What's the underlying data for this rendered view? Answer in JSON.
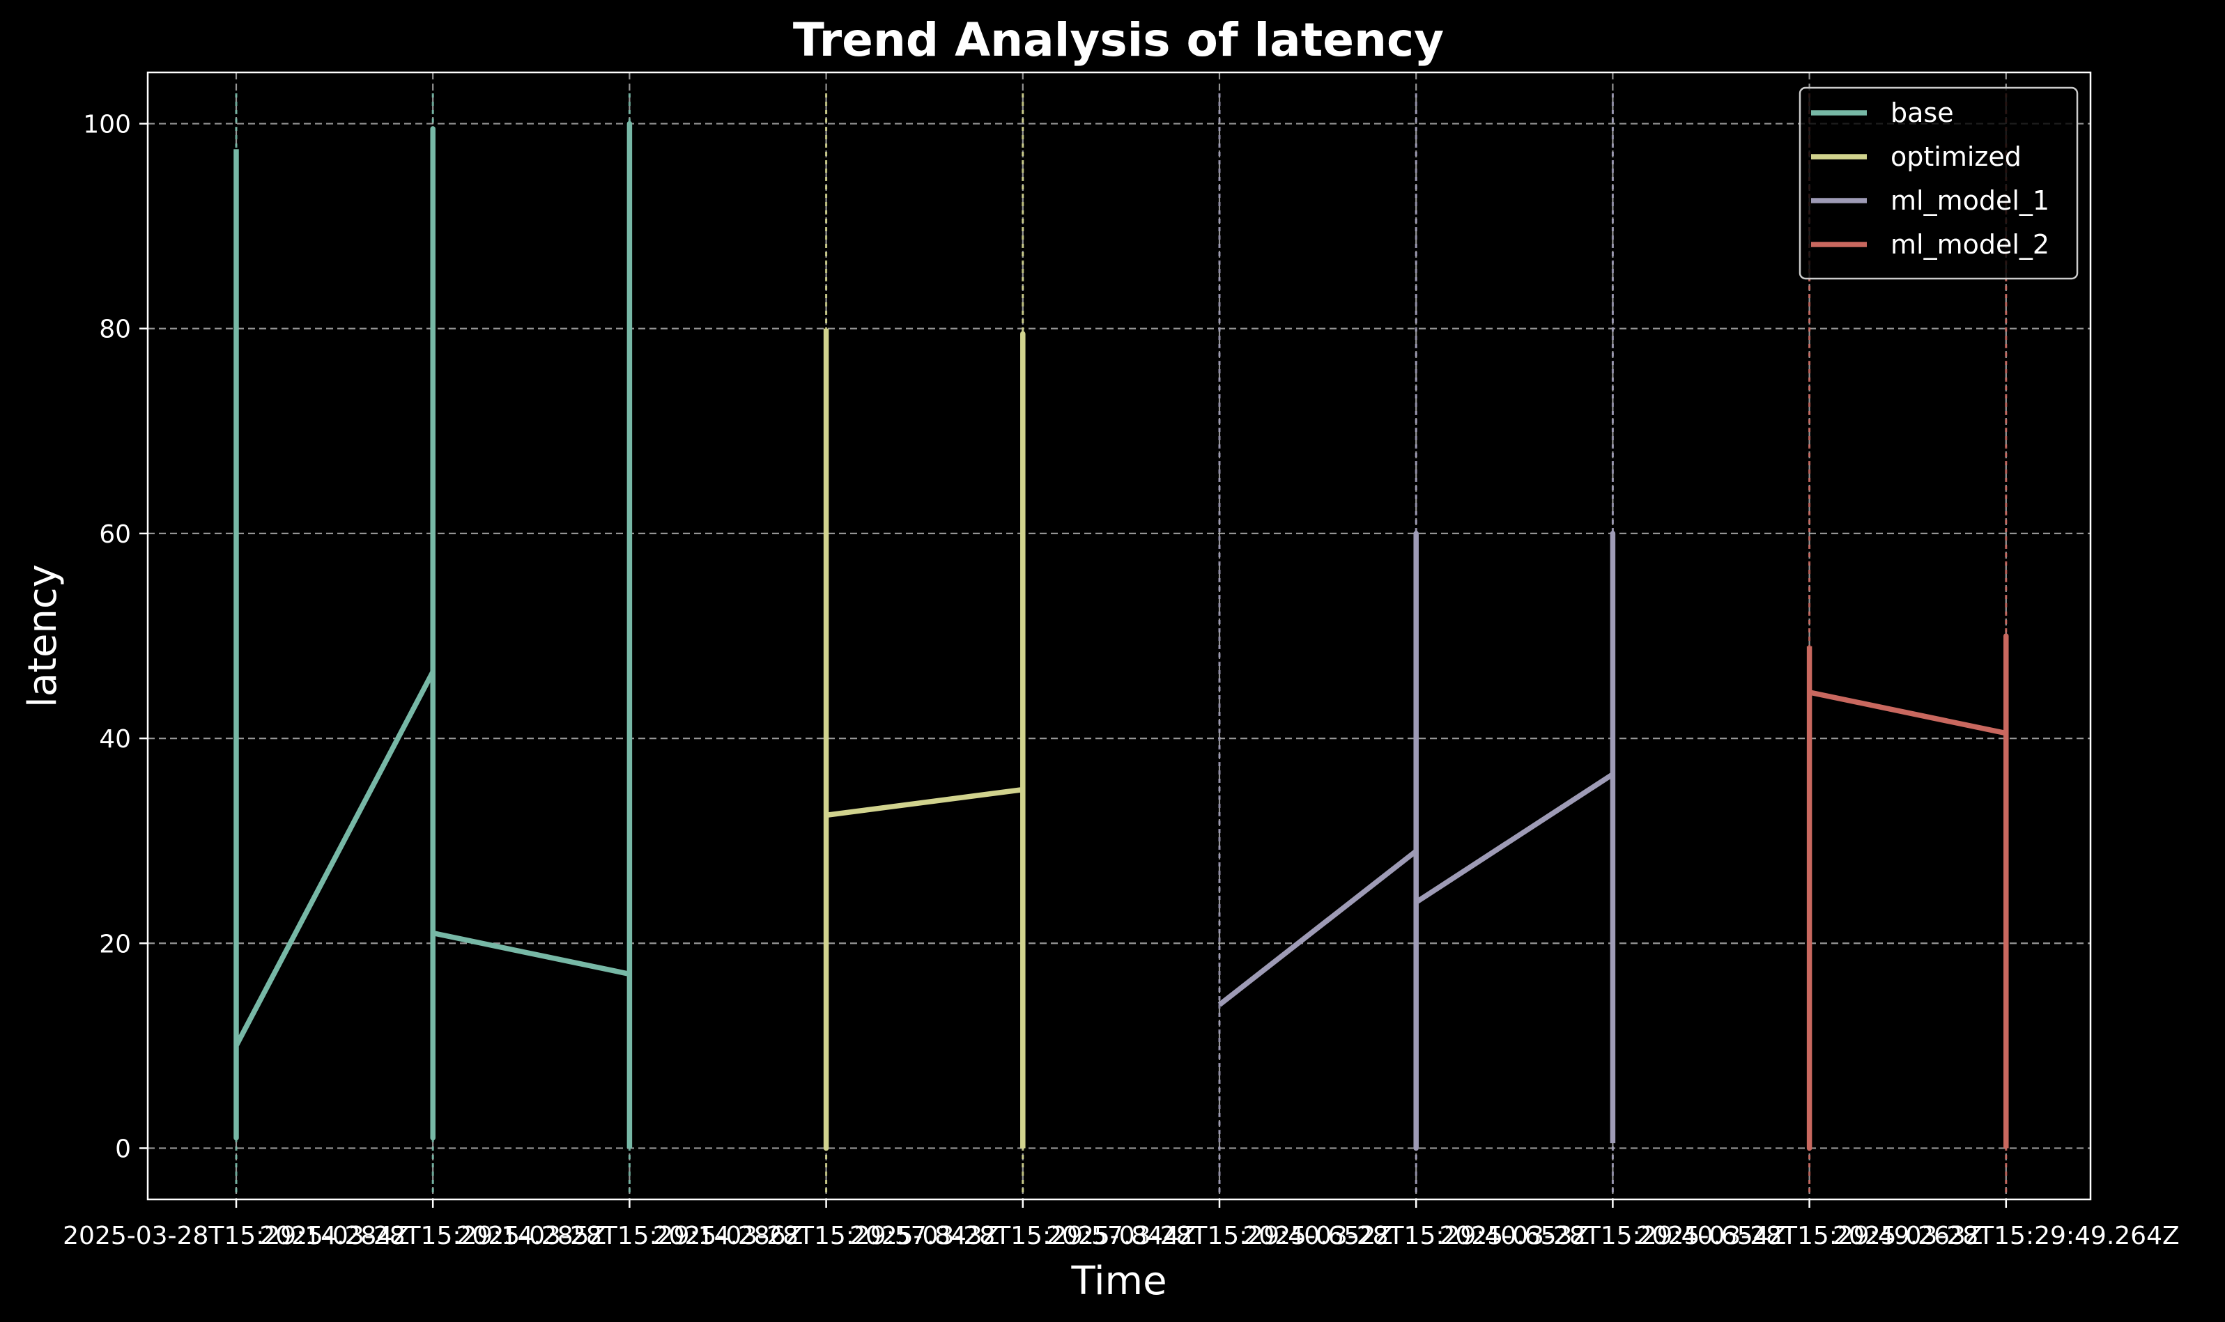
{
  "chart_data": {
    "type": "line",
    "title": "Trend Analysis of latency",
    "xlabel": "Time",
    "ylabel": "latency",
    "ylim": [
      -5,
      105
    ],
    "yticks": [
      0,
      20,
      40,
      60,
      80,
      100
    ],
    "x_categories": [
      "2025-03-28T15:29:14.284Z",
      "2025-03-28T15:29:14.285Z",
      "2025-03-28T15:29:14.286Z",
      "2025-03-28T15:29:57.843Z",
      "2025-03-28T15:29:57.844Z",
      "2025-03-28T15:29:40.652Z",
      "2025-03-28T15:29:40.653Z",
      "2025-03-28T15:29:40.654Z",
      "2025-03-28T15:29:49.263Z",
      "2025-03-28T15:29:49.264Z"
    ],
    "grid": true,
    "legend_position": "top-right",
    "series": [
      {
        "name": "base",
        "color": "#77b8a6",
        "points": [
          [
            0,
            97.5
          ],
          [
            0,
            1
          ],
          [
            0,
            10
          ],
          [
            1,
            46.5
          ],
          [
            1,
            99.5
          ],
          [
            1,
            1
          ],
          [
            1,
            21
          ],
          [
            2,
            17
          ],
          [
            2,
            100
          ],
          [
            2,
            0
          ]
        ]
      },
      {
        "name": "optimized",
        "color": "#d1d38e",
        "points": [
          [
            3,
            80
          ],
          [
            3,
            0
          ],
          [
            3,
            32.5
          ],
          [
            4,
            35
          ],
          [
            4,
            79.5
          ],
          [
            4,
            0
          ]
        ]
      },
      {
        "name": "ml_model_1",
        "color": "#9e9bb6",
        "points": [
          [
            5,
            14
          ],
          [
            6,
            29
          ],
          [
            6,
            60
          ],
          [
            6,
            0
          ],
          [
            6,
            24
          ],
          [
            7,
            36.5
          ],
          [
            7,
            60
          ],
          [
            7,
            0.5
          ]
        ]
      },
      {
        "name": "ml_model_2",
        "color": "#c9685f",
        "points": [
          [
            8,
            49
          ],
          [
            8,
            0
          ],
          [
            8,
            44.5
          ],
          [
            9,
            40.5
          ],
          [
            9,
            50
          ],
          [
            9,
            0
          ]
        ]
      }
    ]
  }
}
